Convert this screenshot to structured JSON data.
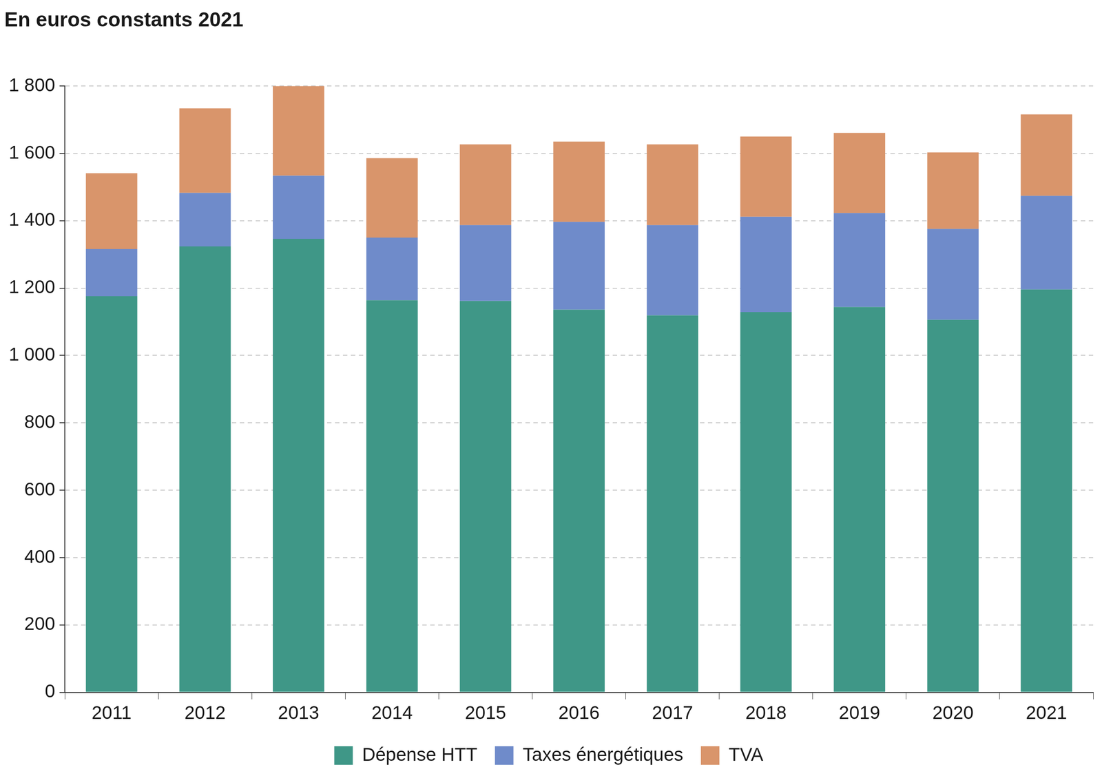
{
  "chart_data": {
    "type": "bar",
    "title": "En euros constants 2021",
    "categories": [
      "2011",
      "2012",
      "2013",
      "2014",
      "2015",
      "2016",
      "2017",
      "2018",
      "2019",
      "2020",
      "2021"
    ],
    "series": [
      {
        "name": "Dépense HTT",
        "color": "#3f9787",
        "values": [
          1176,
          1324,
          1346,
          1164,
          1162,
          1136,
          1119,
          1129,
          1144,
          1106,
          1196
        ]
      },
      {
        "name": "Taxes énergétiques",
        "color": "#6f8bca",
        "values": [
          140,
          159,
          188,
          186,
          225,
          261,
          268,
          283,
          279,
          270,
          278
        ]
      },
      {
        "name": "TVA",
        "color": "#d9956b",
        "values": [
          225,
          251,
          266,
          236,
          240,
          238,
          240,
          238,
          238,
          227,
          242
        ]
      }
    ],
    "ylim": [
      0,
      1800
    ],
    "yticks": [
      0,
      200,
      400,
      600,
      800,
      {
        "value": 1000,
        "label": "1 000"
      },
      {
        "value": 1200,
        "label": "1 200"
      },
      {
        "value": 1400,
        "label": "1 400"
      },
      {
        "value": 1600,
        "label": "1 600"
      },
      {
        "value": 1800,
        "label": "1 800"
      }
    ],
    "stacked": true,
    "grid": true,
    "legend": "bottom"
  }
}
